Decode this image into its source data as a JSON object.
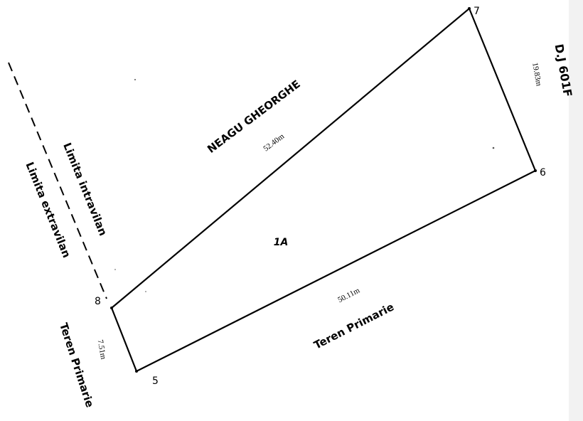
{
  "parcel": {
    "id_label": "1A",
    "points": {
      "p5": "5",
      "p6": "6",
      "p7": "7",
      "p8": "8"
    },
    "sides": {
      "top_length": "52.40m",
      "bottom_length": "50.11m",
      "right_length": "19.83m",
      "left_length": "7.51m"
    }
  },
  "neighbours": {
    "north": "NEAGU GHEORGHE",
    "south": "Teren Primarie",
    "east": "D.J 601F",
    "west": "Teren Primarie"
  },
  "boundaries": {
    "intravilan": "Limita intravilan",
    "extravilan": "Limita extravilan"
  },
  "colors": {
    "ink": "#000000",
    "paper": "#ffffff"
  }
}
